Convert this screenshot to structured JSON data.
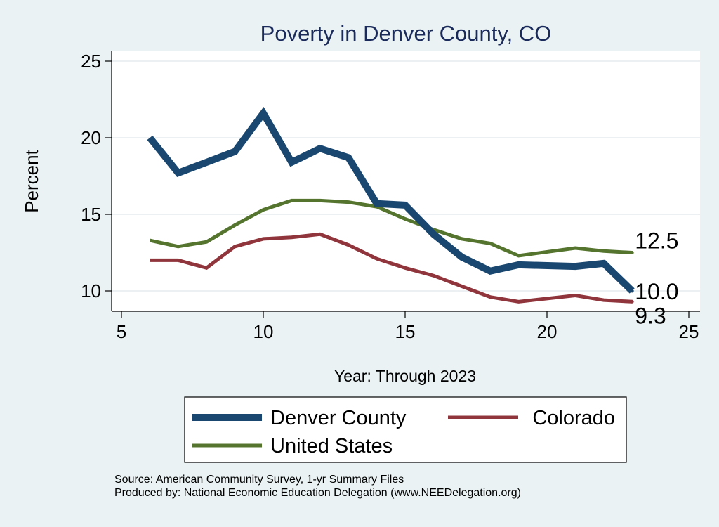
{
  "chart_data": {
    "type": "line",
    "title": "Poverty in Denver County, CO",
    "xlabel": "Year: Through 2023",
    "ylabel": "Percent",
    "xlim": [
      5,
      25
    ],
    "ylim": [
      9,
      26
    ],
    "xticks": [
      5,
      10,
      15,
      20,
      25
    ],
    "yticks": [
      10,
      15,
      20,
      25
    ],
    "grid": true,
    "legend_position": "bottom",
    "series": [
      {
        "name": "Denver County",
        "color": "#1a476f",
        "x": [
          6,
          7,
          8,
          9,
          10,
          11,
          12,
          13,
          14,
          15,
          16,
          17,
          18,
          19,
          21,
          22,
          23
        ],
        "values": [
          20.0,
          17.7,
          18.4,
          19.1,
          21.6,
          18.4,
          19.3,
          18.7,
          15.7,
          15.6,
          13.7,
          12.2,
          11.3,
          11.7,
          11.6,
          11.8,
          10.0
        ],
        "end_label": "10.0"
      },
      {
        "name": "Colorado",
        "color": "#90353b",
        "x": [
          6,
          7,
          8,
          9,
          10,
          11,
          12,
          13,
          14,
          15,
          16,
          17,
          18,
          19,
          21,
          22,
          23
        ],
        "values": [
          12.0,
          12.0,
          11.5,
          12.9,
          13.4,
          13.5,
          13.7,
          13.0,
          12.1,
          11.5,
          11.0,
          10.3,
          9.6,
          9.3,
          9.7,
          9.4,
          9.3
        ],
        "end_label": "9.3"
      },
      {
        "name": "United States",
        "color": "#55752f",
        "x": [
          6,
          7,
          8,
          9,
          10,
          11,
          12,
          13,
          14,
          15,
          16,
          17,
          18,
          19,
          21,
          22,
          23
        ],
        "values": [
          13.3,
          12.9,
          13.2,
          14.3,
          15.3,
          15.9,
          15.9,
          15.8,
          15.5,
          14.7,
          14.0,
          13.4,
          13.1,
          12.3,
          12.8,
          12.6,
          12.5
        ],
        "end_label": "12.5"
      }
    ],
    "legend_order": [
      0,
      1,
      2
    ],
    "notes": [
      "Source: American Community Survey, 1-yr Summary Files",
      "Produced by: National Economic Education Delegation (www.NEEDelegation.org)"
    ]
  }
}
